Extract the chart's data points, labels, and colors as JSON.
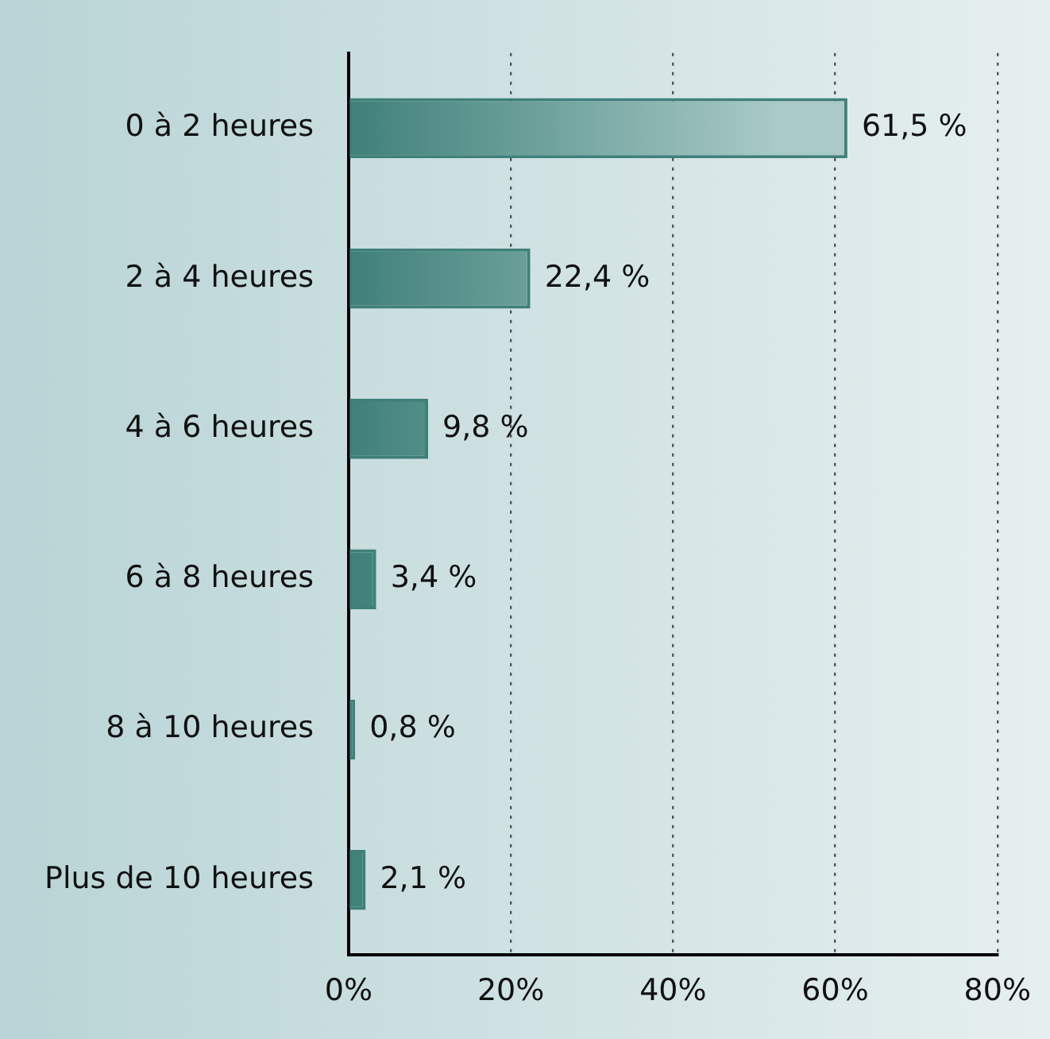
{
  "chart_data": {
    "type": "bar",
    "orientation": "horizontal",
    "categories": [
      "0 à 2 heures",
      "2 à 4 heures",
      "4 à 6 heures",
      "6 à 8 heures",
      "8 à 10 heures",
      "Plus de 10 heures"
    ],
    "values": [
      61.5,
      22.4,
      9.8,
      3.4,
      0.8,
      2.1
    ],
    "value_labels": [
      "61,5 %",
      "22,4 %",
      "9,8 %",
      "3,4 %",
      "0,8 %",
      "2,1 %"
    ],
    "color": "#3f8079",
    "xlim": [
      0,
      80
    ],
    "xticks": [
      {
        "value": 0,
        "label": "0%"
      },
      {
        "value": 20,
        "label": "20%"
      },
      {
        "value": 40,
        "label": "40%"
      },
      {
        "value": 60,
        "label": "60%"
      },
      {
        "value": 80,
        "label": "80%"
      }
    ],
    "grid": "x",
    "line_style": "dotted",
    "legend": false
  }
}
